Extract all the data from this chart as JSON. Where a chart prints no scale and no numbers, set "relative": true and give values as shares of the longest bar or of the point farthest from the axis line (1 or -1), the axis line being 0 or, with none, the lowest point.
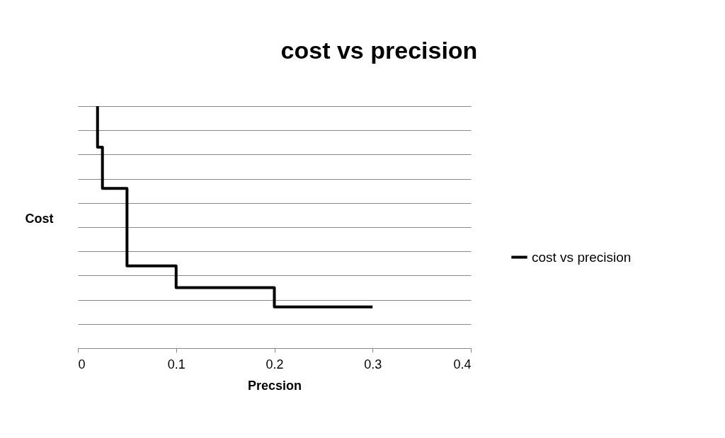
{
  "chart_data": {
    "type": "step",
    "title": "cost vs precision",
    "xlabel": "Precsion",
    "ylabel": "Cost",
    "relative": true,
    "xlim": [
      0,
      0.4
    ],
    "xticks": [
      0,
      0.1,
      0.2,
      0.3,
      0.4
    ],
    "grid": "y",
    "legend": "right",
    "line_style": "solid",
    "x": [
      0.02,
      0.025,
      0.05,
      0.1,
      0.2,
      0.3
    ],
    "series": [
      {
        "name": "cost vs precision",
        "color": "#000000",
        "values": [
          1,
          0.83,
          0.66,
          0.34,
          0.25,
          0.17
        ]
      }
    ]
  }
}
